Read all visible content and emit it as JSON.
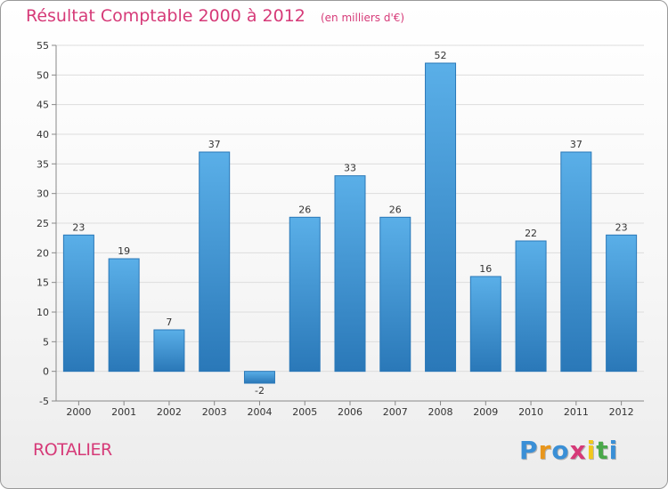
{
  "header": {
    "title": "Résultat Comptable 2000 à 2012",
    "unit": "(en milliers d'€)"
  },
  "footer": {
    "commune": "ROTALIER",
    "logo_letters": [
      "P",
      "r",
      "o",
      "x",
      "i",
      "t",
      "i"
    ],
    "logo_colors": [
      "#3a8fd6",
      "#e8961c",
      "#3a8fd6",
      "#d63a78",
      "#f2c81c",
      "#4aa84a",
      "#3a8fd6"
    ]
  },
  "colors": {
    "bar_top": "#5aafe8",
    "bar_bottom": "#2a78b8",
    "bar_stroke": "#2a78b8",
    "grid": "#dddddd",
    "axis": "#888888",
    "text": "#333333",
    "title": "#d63a78"
  },
  "chart_data": {
    "type": "bar",
    "title": "Résultat Comptable 2000 à 2012",
    "xlabel": "",
    "ylabel": "",
    "categories": [
      "2000",
      "2001",
      "2002",
      "2003",
      "2004",
      "2005",
      "2006",
      "2007",
      "2008",
      "2009",
      "2010",
      "2011",
      "2012"
    ],
    "values": [
      23,
      19,
      7,
      37,
      -2,
      26,
      33,
      26,
      52,
      16,
      22,
      37,
      23
    ],
    "data_labels": [
      "23",
      "19",
      "7",
      "37",
      "-2",
      "26",
      "33",
      "26",
      "52",
      "16",
      "22",
      "37",
      "23"
    ],
    "ylim": [
      -5,
      55
    ],
    "yticks": [
      -5,
      0,
      5,
      10,
      15,
      20,
      25,
      30,
      35,
      40,
      45,
      50,
      55
    ],
    "ytick_labels": [
      "-5",
      "0",
      "5",
      "10",
      "15",
      "20",
      "25",
      "30",
      "35",
      "40",
      "45",
      "50",
      "55"
    ],
    "grid": true,
    "legend": "none"
  }
}
